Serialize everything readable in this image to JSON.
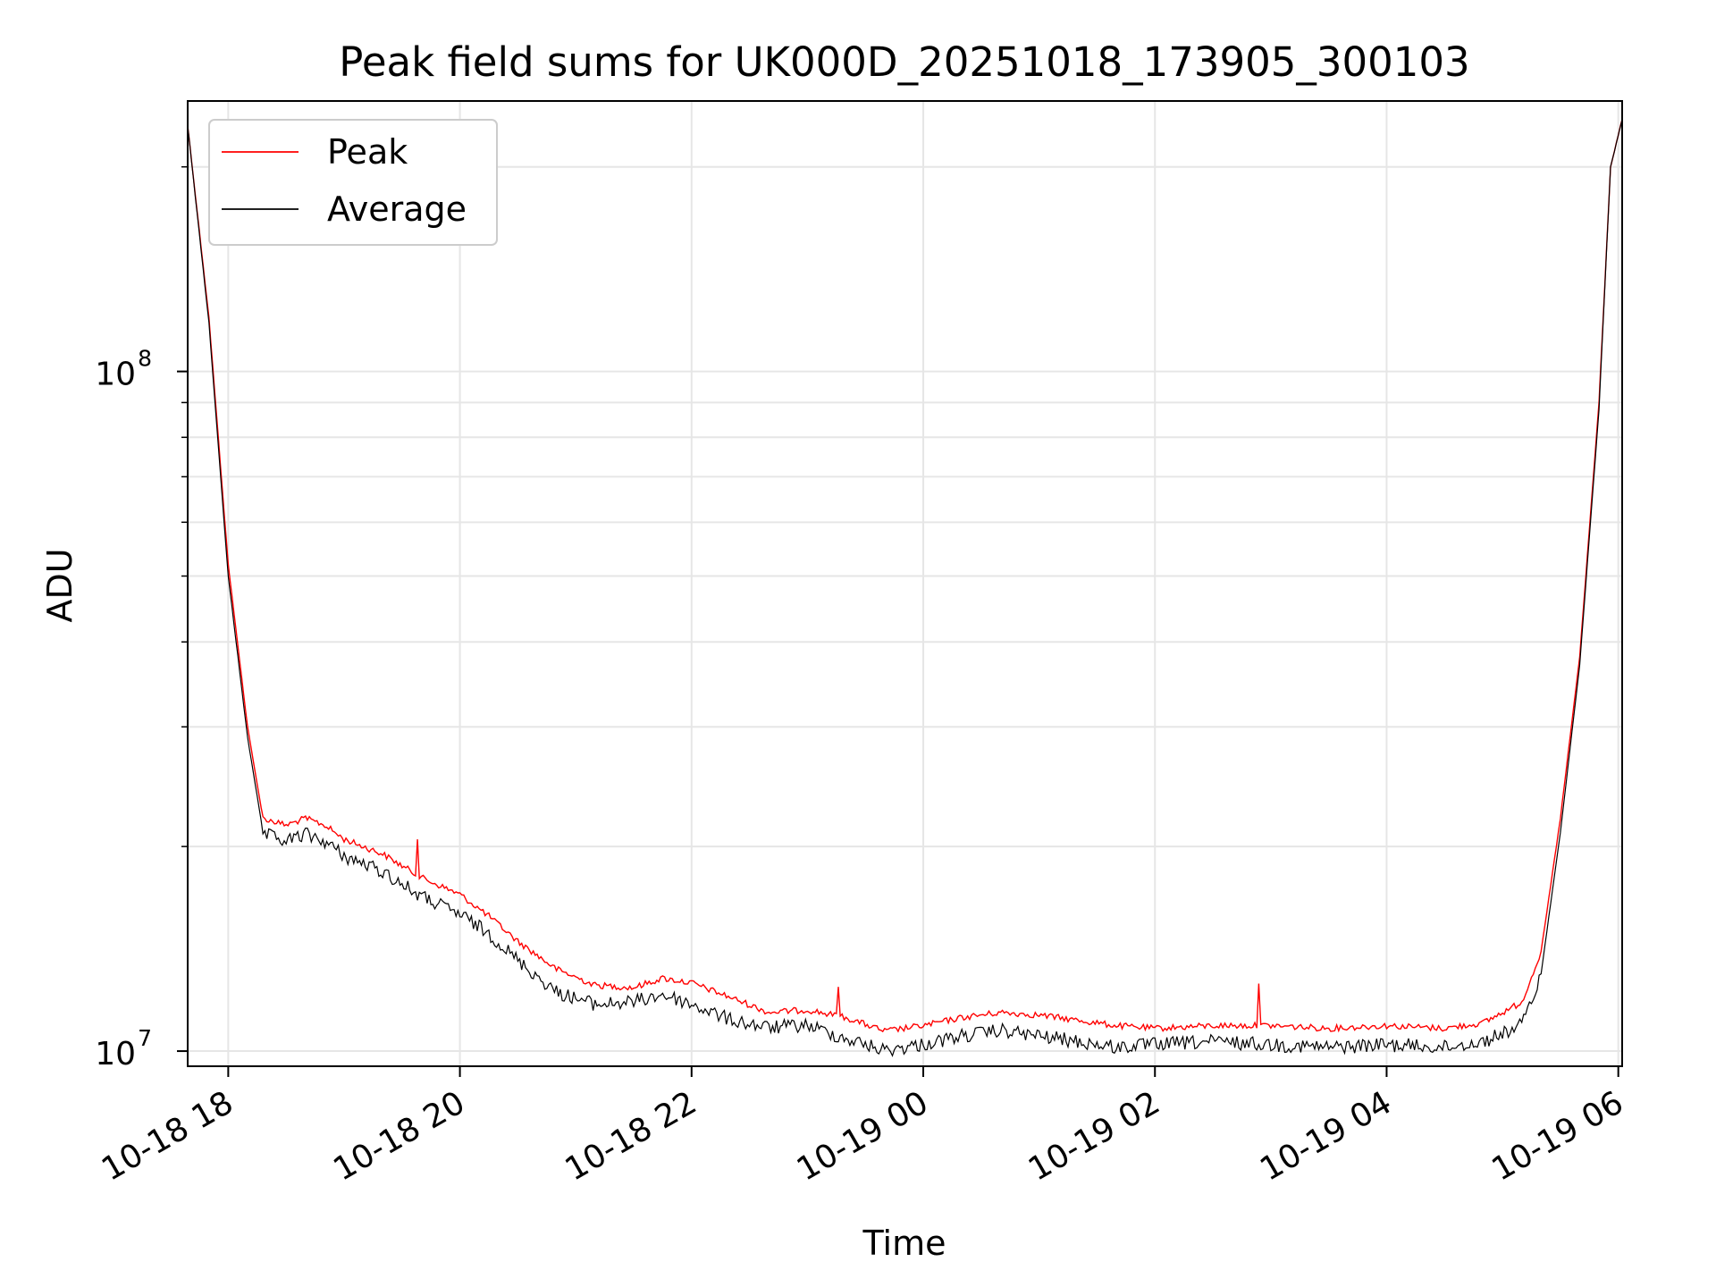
{
  "chart_data": {
    "type": "line",
    "title": "Peak field sums for UK000D_20251018_173905_300103",
    "xlabel": "Time",
    "ylabel": "ADU",
    "y_scale": "log",
    "ylim": [
      9500000,
      250000000
    ],
    "xlim": [
      "2025-10-18T17:39",
      "2025-10-19T06:02"
    ],
    "x_ticks": [
      {
        "t": "2025-10-18T18:00",
        "label": "10-18 18"
      },
      {
        "t": "2025-10-18T20:00",
        "label": "10-18 20"
      },
      {
        "t": "2025-10-18T22:00",
        "label": "10-18 22"
      },
      {
        "t": "2025-10-19T00:00",
        "label": "10-19 00"
      },
      {
        "t": "2025-10-19T02:00",
        "label": "10-19 02"
      },
      {
        "t": "2025-10-19T04:00",
        "label": "10-19 04"
      },
      {
        "t": "2025-10-19T06:00",
        "label": "10-19 06"
      }
    ],
    "y_ticks_major": [
      {
        "value": 10000000,
        "base": "10",
        "exp": "7"
      },
      {
        "value": 100000000,
        "base": "10",
        "exp": "8"
      }
    ],
    "grid": true,
    "legend_position": "top-left",
    "series": [
      {
        "name": "Peak",
        "color": "#ff0000",
        "points": [
          [
            "2025-10-18T17:39",
            230000000
          ],
          [
            "2025-10-18T17:50",
            120000000
          ],
          [
            "2025-10-18T18:00",
            52000000
          ],
          [
            "2025-10-18T18:10",
            30000000
          ],
          [
            "2025-10-18T18:18",
            22000000
          ],
          [
            "2025-10-18T18:30",
            21500000
          ],
          [
            "2025-10-18T18:40",
            22000000
          ],
          [
            "2025-10-18T18:50",
            21500000
          ],
          [
            "2025-10-18T19:00",
            20500000
          ],
          [
            "2025-10-18T19:20",
            19500000
          ],
          [
            "2025-10-18T19:40",
            18000000
          ],
          [
            "2025-10-18T20:00",
            17000000
          ],
          [
            "2025-10-18T20:15",
            15800000
          ],
          [
            "2025-10-18T20:30",
            14500000
          ],
          [
            "2025-10-18T20:50",
            13200000
          ],
          [
            "2025-10-18T21:10",
            12500000
          ],
          [
            "2025-10-18T21:30",
            12400000
          ],
          [
            "2025-10-18T21:45",
            12800000
          ],
          [
            "2025-10-18T22:00",
            12600000
          ],
          [
            "2025-10-18T22:20",
            12000000
          ],
          [
            "2025-10-18T22:40",
            11400000
          ],
          [
            "2025-10-18T23:00",
            11500000
          ],
          [
            "2025-10-18T23:20",
            11200000
          ],
          [
            "2025-10-18T23:40",
            10700000
          ],
          [
            "2025-10-19T00:00",
            10900000
          ],
          [
            "2025-10-19T00:20",
            11200000
          ],
          [
            "2025-10-19T00:40",
            11400000
          ],
          [
            "2025-10-19T01:00",
            11300000
          ],
          [
            "2025-10-19T01:20",
            11100000
          ],
          [
            "2025-10-19T01:40",
            10900000
          ],
          [
            "2025-10-19T02:00",
            10800000
          ],
          [
            "2025-10-19T02:30",
            10900000
          ],
          [
            "2025-10-19T03:00",
            10900000
          ],
          [
            "2025-10-19T03:30",
            10800000
          ],
          [
            "2025-10-19T04:00",
            10900000
          ],
          [
            "2025-10-19T04:30",
            10800000
          ],
          [
            "2025-10-19T04:50",
            11000000
          ],
          [
            "2025-10-19T05:10",
            11800000
          ],
          [
            "2025-10-19T05:20",
            14000000
          ],
          [
            "2025-10-19T05:30",
            22000000
          ],
          [
            "2025-10-19T05:40",
            38000000
          ],
          [
            "2025-10-19T05:50",
            90000000
          ],
          [
            "2025-10-19T05:56",
            200000000
          ],
          [
            "2025-10-19T06:02",
            235000000
          ]
        ]
      },
      {
        "name": "Average",
        "color": "#000000",
        "points": [
          [
            "2025-10-18T17:39",
            230000000
          ],
          [
            "2025-10-18T17:50",
            118000000
          ],
          [
            "2025-10-18T18:00",
            50000000
          ],
          [
            "2025-10-18T18:10",
            29000000
          ],
          [
            "2025-10-18T18:18",
            21000000
          ],
          [
            "2025-10-18T18:30",
            20500000
          ],
          [
            "2025-10-18T18:40",
            21000000
          ],
          [
            "2025-10-18T18:50",
            20500000
          ],
          [
            "2025-10-18T19:00",
            19500000
          ],
          [
            "2025-10-18T19:20",
            18500000
          ],
          [
            "2025-10-18T19:40",
            17000000
          ],
          [
            "2025-10-18T20:00",
            16000000
          ],
          [
            "2025-10-18T20:15",
            15000000
          ],
          [
            "2025-10-18T20:30",
            13700000
          ],
          [
            "2025-10-18T20:50",
            12300000
          ],
          [
            "2025-10-18T21:10",
            11800000
          ],
          [
            "2025-10-18T21:30",
            11900000
          ],
          [
            "2025-10-18T21:45",
            12200000
          ],
          [
            "2025-10-18T22:00",
            11800000
          ],
          [
            "2025-10-18T22:20",
            11200000
          ],
          [
            "2025-10-18T22:40",
            10900000
          ],
          [
            "2025-10-18T23:00",
            11000000
          ],
          [
            "2025-10-18T23:20",
            10500000
          ],
          [
            "2025-10-18T23:40",
            10100000
          ],
          [
            "2025-10-19T00:00",
            10300000
          ],
          [
            "2025-10-19T00:20",
            10600000
          ],
          [
            "2025-10-19T00:40",
            10800000
          ],
          [
            "2025-10-19T01:00",
            10600000
          ],
          [
            "2025-10-19T01:20",
            10400000
          ],
          [
            "2025-10-19T01:40",
            10200000
          ],
          [
            "2025-10-19T02:00",
            10300000
          ],
          [
            "2025-10-19T02:30",
            10400000
          ],
          [
            "2025-10-19T03:00",
            10300000
          ],
          [
            "2025-10-19T03:30",
            10200000
          ],
          [
            "2025-10-19T04:00",
            10300000
          ],
          [
            "2025-10-19T04:30",
            10200000
          ],
          [
            "2025-10-19T04:50",
            10400000
          ],
          [
            "2025-10-19T05:10",
            11000000
          ],
          [
            "2025-10-19T05:20",
            13000000
          ],
          [
            "2025-10-19T05:30",
            21000000
          ],
          [
            "2025-10-19T05:40",
            37000000
          ],
          [
            "2025-10-19T05:50",
            88000000
          ],
          [
            "2025-10-19T05:56",
            200000000
          ],
          [
            "2025-10-19T06:02",
            235000000
          ]
        ]
      }
    ]
  }
}
